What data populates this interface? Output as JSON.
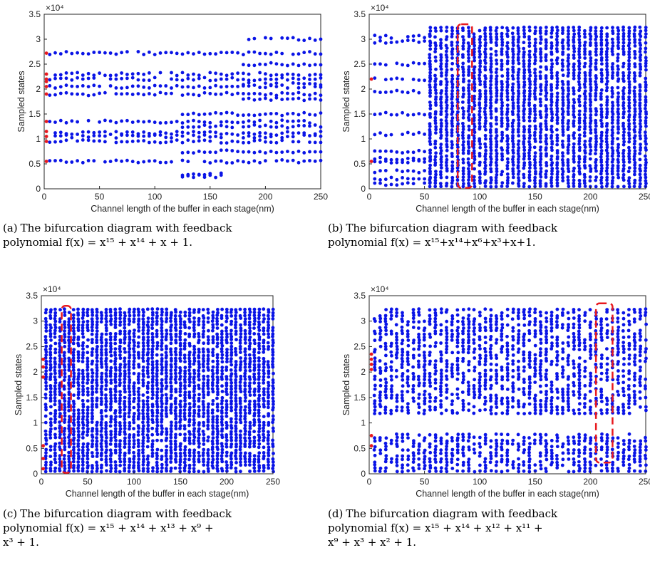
{
  "chart_data": [
    {
      "id": "a",
      "type": "scatter",
      "caption_label": "(a)",
      "caption_text": "The bifurcation diagram with feedback",
      "caption_poly": "polynomial f(x) = x¹⁵ + x¹⁴ + x + 1.",
      "xlabel": "Channel length of the buffer in each stage(nm)",
      "ylabel": "Sampled states",
      "y_exponent": "×10⁴",
      "xlim": [
        0,
        250
      ],
      "ylim": [
        0,
        3.5
      ],
      "xticks": [
        "0",
        "50",
        "100",
        "150",
        "200",
        "250"
      ],
      "yticks": [
        "0",
        "0.5",
        "1",
        "1.5",
        "2",
        "2.5",
        "3",
        "3.5"
      ],
      "colors": {
        "points": "#0a14e6",
        "initial": "#e8191e",
        "highlight": "#e8191e"
      },
      "initial_states": [
        0.55,
        0.95,
        1.05,
        1.15,
        1.35,
        1.9,
        2.05,
        2.15,
        2.2,
        2.3,
        2.72
      ],
      "bands": [
        {
          "y": [
            0.55
          ],
          "x_range": [
            5,
            250
          ]
        },
        {
          "y": [
            0.95,
            1.05,
            1.12
          ],
          "x_range": [
            5,
            250
          ]
        },
        {
          "y": [
            1.35
          ],
          "x_range": [
            5,
            250
          ]
        },
        {
          "y": [
            1.9,
            2.05,
            2.2,
            2.3
          ],
          "x_range": [
            5,
            250
          ]
        },
        {
          "y": [
            2.72
          ],
          "x_range": [
            5,
            250
          ]
        },
        {
          "y": [
            3.0
          ],
          "x_range": [
            178,
            250
          ]
        },
        {
          "y": [
            0.3,
            0.25
          ],
          "x_range": [
            125,
            160
          ]
        },
        {
          "y": [
            1.5,
            1.25,
            0.75
          ],
          "x_range": [
            125,
            250
          ]
        },
        {
          "y": [
            2.1,
            1.8,
            2.5
          ],
          "x_range": [
            178,
            250
          ]
        }
      ],
      "highlight_box": null
    },
    {
      "id": "b",
      "type": "scatter",
      "caption_label": "(b)",
      "caption_text": "The bifurcation diagram with feedback",
      "caption_poly": "polynomial f(x) = x¹⁵+x¹⁴+x⁶+x³+x+1.",
      "xlabel": "Channel length of the buffer in each stage(nm)",
      "ylabel": "Sampled states",
      "y_exponent": "×10⁴",
      "xlim": [
        0,
        250
      ],
      "ylim": [
        0,
        3.5
      ],
      "xticks": [
        "0",
        "50",
        "100",
        "150",
        "200",
        "250"
      ],
      "yticks": [
        "0",
        "0.5",
        "1",
        "1.5",
        "2",
        "2.5",
        "3",
        "3.5"
      ],
      "colors": {
        "points": "#0a14e6",
        "initial": "#e8191e",
        "highlight": "#e8191e"
      },
      "initial_states": [
        0.55,
        2.2
      ],
      "bands": [
        {
          "y": [
            0.1,
            0.2,
            0.35,
            0.55,
            0.6,
            0.75,
            1.1,
            1.5,
            1.95,
            2.2,
            2.5,
            2.95,
            3.05
          ],
          "x_range": [
            5,
            55
          ]
        },
        {
          "y": "dense",
          "x_range": [
            55,
            250
          ]
        }
      ],
      "highlight_box": {
        "x": [
          80,
          93
        ],
        "y": [
          0.02,
          3.3
        ]
      }
    },
    {
      "id": "c",
      "type": "scatter",
      "caption_label": "(c)",
      "caption_text": "The bifurcation diagram with feedback",
      "caption_poly": "polynomial f(x) = x¹⁵ + x¹⁴ + x¹³ + x⁹ +",
      "caption_poly2": "x³ + 1.",
      "xlabel": "Channel length of the buffer in each stage(nm)",
      "ylabel": "Sampled states",
      "y_exponent": "×10⁴",
      "xlim": [
        0,
        250
      ],
      "ylim": [
        0,
        3.5
      ],
      "xticks": [
        "0",
        "50",
        "100",
        "150",
        "200",
        "250"
      ],
      "yticks": [
        "0",
        "0.5",
        "1",
        "1.5",
        "2",
        "2.5",
        "3",
        "3.5"
      ],
      "colors": {
        "points": "#0a14e6",
        "initial": "#e8191e",
        "highlight": "#e8191e"
      },
      "initial_states": [
        0.1,
        0.3,
        0.55,
        1.9,
        2.1,
        2.25
      ],
      "bands": [
        {
          "y": "dense",
          "x_range": [
            5,
            250
          ]
        }
      ],
      "highlight_box": {
        "x": [
          22,
          32
        ],
        "y": [
          0.02,
          3.3
        ]
      }
    },
    {
      "id": "d",
      "type": "scatter",
      "caption_label": "(d)",
      "caption_text": "The bifurcation diagram with feedback",
      "caption_poly": "polynomial f(x) = x¹⁵ + x¹⁴ + x¹² + x¹¹ +",
      "caption_poly2": "x⁹ + x³ + x² + 1.",
      "xlabel": "Channel length of the buffer in each stage(nm)",
      "ylabel": "Sampled states",
      "y_exponent": "×10⁴",
      "xlim": [
        0,
        250
      ],
      "ylim": [
        0,
        3.5
      ],
      "xticks": [
        "0",
        "50",
        "100",
        "150",
        "200",
        "250"
      ],
      "yticks": [
        "0",
        "0.5",
        "1",
        "1.5",
        "2",
        "2.5",
        "3",
        "3.5"
      ],
      "colors": {
        "points": "#0a14e6",
        "initial": "#e8191e",
        "highlight": "#e8191e"
      },
      "initial_states": [
        0.55,
        0.75,
        2.05,
        2.15,
        2.25,
        2.35
      ],
      "bands": [
        {
          "y": "dense-gap",
          "x_range": [
            5,
            250
          ],
          "gap": [
            0.8,
            1.15
          ]
        }
      ],
      "highlight_box": {
        "x": [
          205,
          220
        ],
        "y": [
          0.22,
          3.35
        ]
      }
    }
  ]
}
